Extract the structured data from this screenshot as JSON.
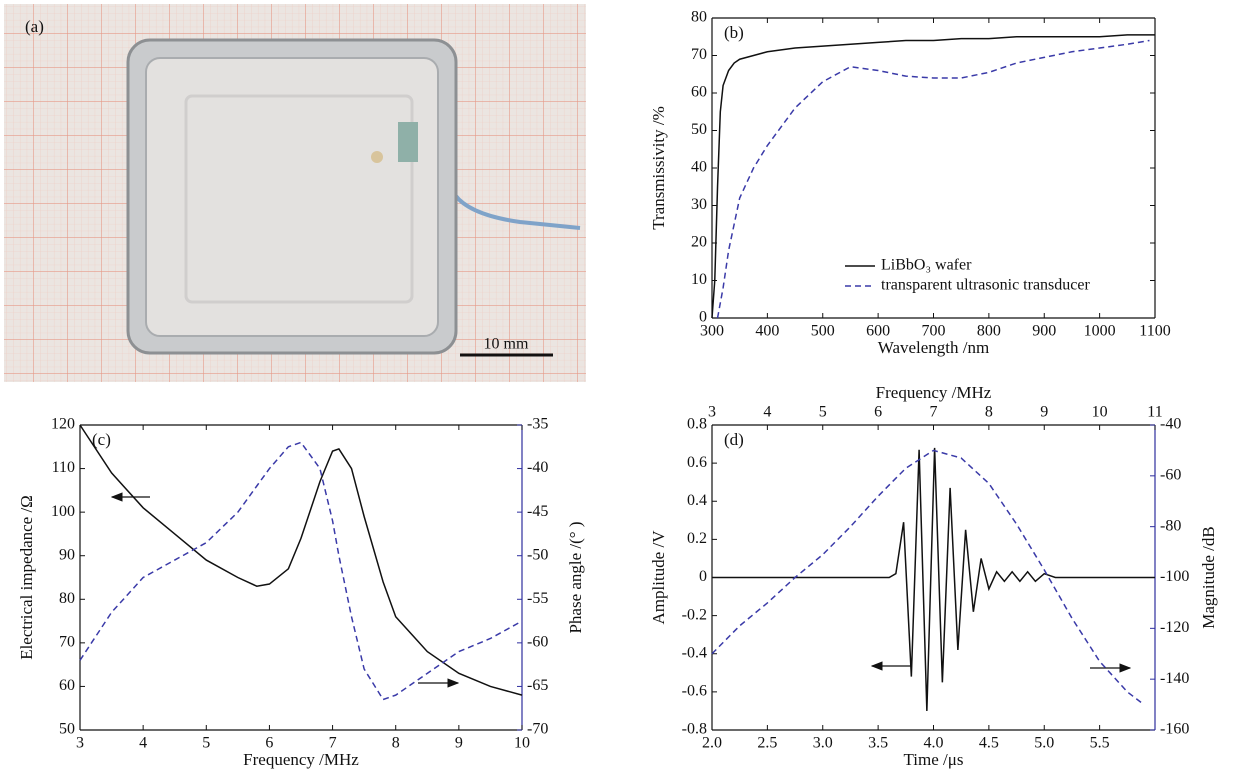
{
  "photo": {
    "label": "(a)",
    "scale_bar": "10 mm"
  },
  "chart_data": [
    {
      "type": "line",
      "label": "(b)",
      "xlabel": "Wavelength /nm",
      "ylabel": "Transmissivity /%",
      "xlim": [
        300,
        1100
      ],
      "xticks": [
        300,
        400,
        500,
        600,
        700,
        800,
        900,
        1000,
        1100
      ],
      "ylim": [
        0,
        80
      ],
      "yticks": [
        0,
        10,
        20,
        30,
        40,
        50,
        60,
        70,
        80
      ],
      "legend": "lower right",
      "series": [
        {
          "name": "LiBbO₃ wafer",
          "color": "#111111",
          "dashed": false,
          "x": [
            300,
            305,
            310,
            315,
            320,
            330,
            340,
            350,
            375,
            400,
            450,
            500,
            550,
            600,
            650,
            700,
            750,
            800,
            850,
            900,
            950,
            1000,
            1050,
            1100
          ],
          "values": [
            0,
            10,
            35,
            55,
            62,
            66,
            68,
            69,
            70,
            71,
            72,
            72.5,
            73,
            73.5,
            74,
            74,
            74.5,
            74.5,
            75,
            75,
            75,
            75,
            75.5,
            75.5
          ]
        },
        {
          "name": "transparent ultrasonic transducer",
          "color": "#3a3aa8",
          "dashed": true,
          "x": [
            310,
            320,
            330,
            340,
            350,
            375,
            400,
            450,
            500,
            550,
            600,
            650,
            700,
            750,
            800,
            850,
            900,
            950,
            1000,
            1050,
            1090
          ],
          "values": [
            0,
            8,
            18,
            25,
            32,
            40,
            46,
            56,
            63,
            67,
            66,
            64.5,
            64,
            64,
            65.5,
            68,
            69.5,
            71,
            72,
            73,
            74
          ]
        }
      ]
    },
    {
      "type": "line",
      "label": "(c)",
      "xlabel": "Frequency /MHz",
      "ylabel": "Electrical impedance /Ω",
      "y2label": "Phase angle /(° )",
      "xlim": [
        3,
        10
      ],
      "xticks": [
        3,
        4,
        5,
        6,
        7,
        8,
        9,
        10
      ],
      "ylim": [
        50,
        120
      ],
      "yticks": [
        50,
        60,
        70,
        80,
        90,
        100,
        110,
        120
      ],
      "y2lim": [
        -70,
        -35
      ],
      "y2ticks": [
        -70,
        -65,
        -60,
        -55,
        -50,
        -45,
        -40,
        -35
      ],
      "y2color": "#2e2e9e",
      "series": [
        {
          "color": "#111111",
          "dashed": false,
          "axis": "y",
          "x": [
            3,
            3.5,
            4,
            4.5,
            5,
            5.5,
            5.8,
            6,
            6.3,
            6.5,
            6.8,
            7,
            7.1,
            7.3,
            7.5,
            7.8,
            8,
            8.5,
            9,
            9.5,
            10
          ],
          "values": [
            120,
            109,
            101,
            95,
            89,
            85,
            83,
            83.5,
            87,
            94,
            107,
            114,
            114.5,
            110,
            99,
            84,
            76,
            68,
            63,
            60,
            58
          ]
        },
        {
          "color": "#3a3aa8",
          "dashed": true,
          "axis": "y2",
          "x": [
            3,
            3.5,
            4,
            4.5,
            5,
            5.5,
            5.8,
            6,
            6.3,
            6.5,
            6.8,
            7,
            7.1,
            7.3,
            7.5,
            7.8,
            8,
            8.5,
            9,
            9.5,
            10
          ],
          "values": [
            -62,
            -56.5,
            -52.5,
            -50.5,
            -48.5,
            -45,
            -42,
            -40,
            -37.5,
            -37,
            -40,
            -46,
            -50,
            -57,
            -63,
            -66.5,
            -66,
            -63.5,
            -61,
            -59.5,
            -57.5
          ]
        }
      ]
    },
    {
      "type": "line",
      "label": "(d)",
      "xlabel": "Time /μs",
      "x2label": "Frequency /MHz",
      "ylabel": "Amplitude /V",
      "y2label": "Magnitude /dB",
      "xlim": [
        2.0,
        6.0
      ],
      "xticks": [
        {
          "value": 2,
          "label": "2.0"
        },
        2.5,
        {
          "value": 3,
          "label": "3.0"
        },
        3.5,
        {
          "value": 4,
          "label": "4.0"
        },
        4.5,
        {
          "value": 5,
          "label": "5.0"
        },
        5.5
      ],
      "x2lim": [
        3,
        11
      ],
      "x2ticks": [
        3,
        4,
        5,
        6,
        7,
        8,
        9,
        10,
        11
      ],
      "ylim": [
        -0.8,
        0.8
      ],
      "yticks": [
        -0.8,
        -0.6,
        -0.4,
        -0.2,
        0,
        0.2,
        0.4,
        0.6,
        0.8
      ],
      "y2lim": [
        -160,
        -40
      ],
      "y2ticks": [
        -160,
        -140,
        -120,
        -100,
        -80,
        -60,
        -40
      ],
      "y2color": "#2e2e9e",
      "series": [
        {
          "color": "#111111",
          "dashed": false,
          "axis": "y",
          "x": [
            2.0,
            3.6,
            3.66,
            3.73,
            3.8,
            3.87,
            3.94,
            4.01,
            4.08,
            4.15,
            4.22,
            4.29,
            4.36,
            4.43,
            4.5,
            4.57,
            4.64,
            4.71,
            4.78,
            4.85,
            4.92,
            5.0,
            5.1,
            6.0
          ],
          "values": [
            0,
            0,
            0.02,
            0.29,
            -0.52,
            0.67,
            -0.7,
            0.68,
            -0.55,
            0.47,
            -0.38,
            0.25,
            -0.18,
            0.1,
            -0.06,
            0.03,
            -0.02,
            0.03,
            -0.02,
            0.03,
            -0.02,
            0.02,
            0,
            0
          ]
        },
        {
          "color": "#3a3aa8",
          "dashed": true,
          "axis": "y2",
          "xaxis": "x2",
          "x": [
            3,
            3.5,
            4,
            4.5,
            5,
            5.5,
            6,
            6.5,
            7,
            7.5,
            8,
            8.5,
            9,
            9.5,
            10,
            10.5,
            10.8
          ],
          "values": [
            -130,
            -119,
            -110,
            -100,
            -91,
            -80,
            -68,
            -57,
            -50,
            -53,
            -63,
            -79,
            -97,
            -116,
            -133,
            -145,
            -150
          ]
        }
      ]
    }
  ]
}
